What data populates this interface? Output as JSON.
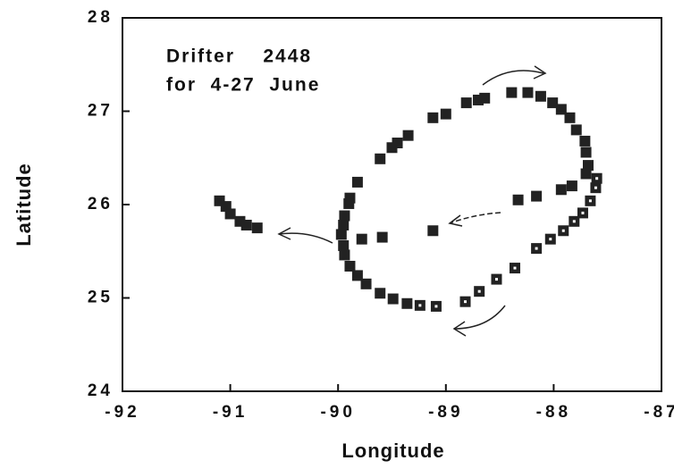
{
  "chart_data": {
    "type": "scatter",
    "xlabel": "Longitude",
    "ylabel": "Latitude",
    "annotations": [
      "Drifter    2448",
      "for  4-27  June"
    ],
    "xlim": [
      -92,
      -87
    ],
    "xticks": [
      -92,
      -91,
      -90,
      -89,
      -88,
      -87
    ],
    "ylim": [
      24,
      28
    ],
    "yticks": [
      24,
      25,
      26,
      27,
      28
    ],
    "series": [
      {
        "color": "#222222",
        "marker": "filled",
        "x": [
          -91.1,
          -91.04,
          -91.0,
          -90.91,
          -90.85,
          -90.75,
          -89.12,
          -89.59,
          -89.78,
          -88.33,
          -88.16,
          -87.93,
          -87.83,
          -87.7,
          -87.68,
          -87.7,
          -87.71,
          -87.79,
          -87.85,
          -87.93,
          -88.01,
          -88.12,
          -88.24,
          -88.39,
          -88.64,
          -88.7,
          -88.81,
          -89.0,
          -89.12,
          -89.35,
          -89.45,
          -89.5,
          -89.61,
          -89.82,
          -89.89,
          -89.9,
          -89.94,
          -89.95,
          -89.97,
          -89.95,
          -89.94,
          -89.89,
          -89.82,
          -89.74,
          -89.61,
          -89.49,
          -89.36
        ],
        "values": [
          26.04,
          25.98,
          25.9,
          25.82,
          25.78,
          25.75,
          25.72,
          25.65,
          25.63,
          26.05,
          26.09,
          26.16,
          26.2,
          26.33,
          26.42,
          26.56,
          26.68,
          26.8,
          26.93,
          27.02,
          27.09,
          27.16,
          27.2,
          27.2,
          27.14,
          27.12,
          27.09,
          26.97,
          26.93,
          26.74,
          26.66,
          26.61,
          26.49,
          26.24,
          26.07,
          26.01,
          25.88,
          25.78,
          25.68,
          25.56,
          25.46,
          25.34,
          25.24,
          25.15,
          25.05,
          24.99,
          24.94
        ]
      },
      {
        "color": "#222222",
        "marker": "open",
        "x": [
          -89.24,
          -89.09,
          -88.82,
          -88.69,
          -88.53,
          -88.36,
          -88.16,
          -88.03,
          -87.91,
          -87.81,
          -87.73,
          -87.66,
          -87.61,
          -87.6
        ],
        "values": [
          24.92,
          24.91,
          24.96,
          25.07,
          25.2,
          25.32,
          25.53,
          25.63,
          25.72,
          25.82,
          25.91,
          26.04,
          26.18,
          26.28
        ]
      }
    ]
  }
}
